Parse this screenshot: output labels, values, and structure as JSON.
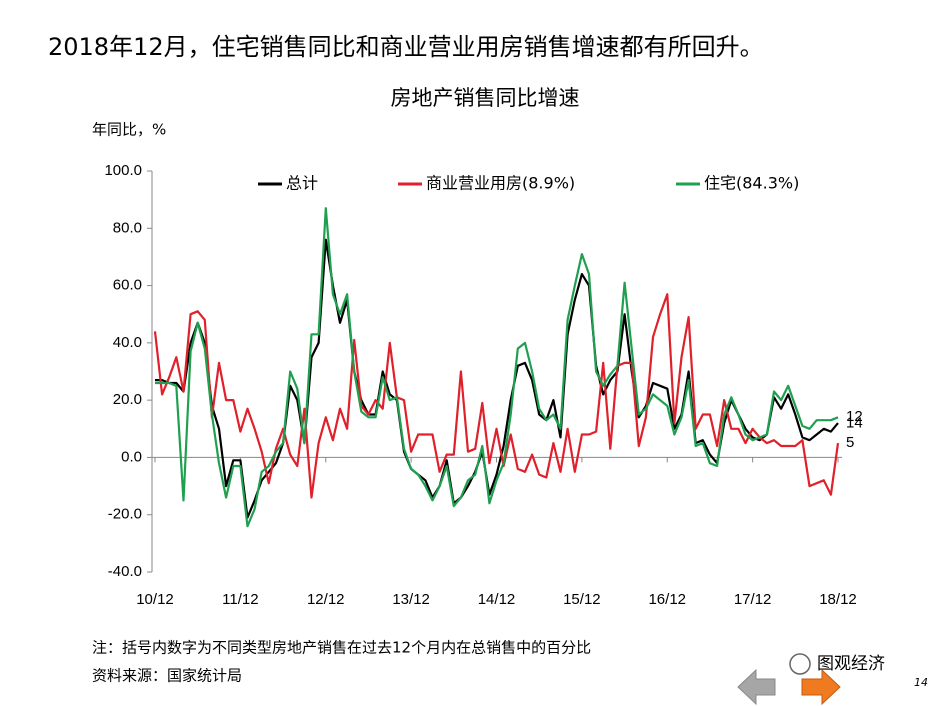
{
  "header": {
    "title": "2018年12月，住宅销售同比和商业营业用房销售增速都有所回升。"
  },
  "chart_data": {
    "type": "line",
    "title": "房地产销售同比增速",
    "y_label": "年同比，%",
    "categories": [
      "10/12",
      null,
      null,
      null,
      null,
      null,
      null,
      null,
      null,
      null,
      null,
      null,
      "11/12",
      null,
      null,
      null,
      null,
      null,
      null,
      null,
      null,
      null,
      null,
      null,
      "12/12",
      null,
      null,
      null,
      null,
      null,
      null,
      null,
      null,
      null,
      null,
      null,
      "13/12",
      null,
      null,
      null,
      null,
      null,
      null,
      null,
      null,
      null,
      null,
      null,
      "14/12",
      null,
      null,
      null,
      null,
      null,
      null,
      null,
      null,
      null,
      null,
      null,
      "15/12",
      null,
      null,
      null,
      null,
      null,
      null,
      null,
      null,
      null,
      null,
      null,
      "16/12",
      null,
      null,
      null,
      null,
      null,
      null,
      null,
      null,
      null,
      null,
      null,
      "17/12",
      null,
      null,
      null,
      null,
      null,
      null,
      null,
      null,
      null,
      null,
      null,
      "18/12"
    ],
    "series": [
      {
        "name": "总计",
        "color": "#000000",
        "values": [
          27,
          27,
          26,
          26,
          23,
          40,
          47,
          40,
          18,
          10,
          -10,
          -1,
          -1,
          -21,
          -15,
          -8,
          -5,
          -2,
          5,
          25,
          20,
          5,
          35,
          40,
          76,
          60,
          47,
          55,
          30,
          20,
          15,
          15,
          30,
          22,
          20,
          2,
          -4,
          -6,
          -8,
          -14,
          -10,
          -1,
          -16,
          -14,
          -10,
          -5,
          2,
          -13,
          -6,
          4,
          20,
          32,
          33,
          27,
          15,
          13,
          20,
          7,
          43,
          55,
          64,
          60,
          32,
          22,
          27,
          30,
          50,
          30,
          14,
          18,
          26,
          25,
          24,
          10,
          15,
          30,
          5,
          6,
          1,
          -2,
          12,
          20,
          15,
          10,
          7,
          6,
          8,
          21,
          17,
          22,
          15,
          7,
          6,
          8,
          10,
          9,
          12
        ]
      },
      {
        "name": "商业营业用房(8.9%)",
        "color": "#e0202a",
        "values": [
          44,
          22,
          28,
          35,
          23,
          50,
          51,
          48,
          14,
          33,
          20,
          20,
          9,
          17,
          10,
          2,
          -9,
          3,
          10,
          1,
          -3,
          17,
          -14,
          5,
          14,
          6,
          17,
          10,
          41,
          18,
          15,
          20,
          17,
          40,
          21,
          20,
          2,
          8,
          8,
          8,
          -5,
          1,
          1,
          30,
          2,
          3,
          19,
          -2,
          10,
          -3,
          8,
          -4,
          -5,
          1,
          -6,
          -7,
          5,
          -5,
          10,
          -5,
          8,
          8,
          9,
          33,
          3,
          32,
          33,
          33,
          4,
          14,
          42,
          50,
          57,
          12,
          35,
          49,
          10,
          15,
          15,
          4,
          20,
          10,
          10,
          5,
          10,
          7,
          5,
          6,
          4,
          4,
          4,
          6,
          -10,
          -9,
          -8,
          -13,
          5
        ]
      },
      {
        "name": "住宅(84.3%)",
        "color": "#1fa050",
        "values": [
          26,
          26,
          26,
          25,
          -15,
          37,
          47,
          38,
          15,
          -2,
          -14,
          -3,
          -3,
          -24,
          -18,
          -5,
          -3,
          2,
          5,
          30,
          24,
          5,
          43,
          43,
          87,
          57,
          50,
          57,
          30,
          16,
          14,
          14,
          28,
          20,
          21,
          3,
          -4,
          -6,
          -10,
          -15,
          -10,
          -3,
          -17,
          -14,
          -8,
          -6,
          4,
          -16,
          -8,
          -2,
          15,
          38,
          40,
          30,
          17,
          13,
          15,
          10,
          48,
          60,
          71,
          64,
          30,
          25,
          29,
          32,
          61,
          38,
          15,
          17,
          22,
          20,
          18,
          8,
          14,
          27,
          4,
          5,
          -2,
          -3,
          15,
          21,
          15,
          8,
          6,
          7,
          8,
          23,
          20,
          25,
          18,
          11,
          10,
          13,
          13,
          13,
          14
        ]
      }
    ],
    "ylim": [
      -40,
      100
    ],
    "yticks": [
      {
        "value": -40,
        "label": "-40.0"
      },
      {
        "value": -20,
        "label": "-20.0"
      },
      {
        "value": 0,
        "label": "0.0"
      },
      {
        "value": 20,
        "label": "20.0"
      },
      {
        "value": 40,
        "label": "40.0"
      },
      {
        "value": 60,
        "label": "60.0"
      },
      {
        "value": 80,
        "label": "80.0"
      },
      {
        "value": 100,
        "label": "100.0"
      }
    ],
    "grid": false,
    "legend": "top"
  },
  "footer": {
    "note": "注：括号内数字为不同类型房地产销售在过去12个月内在总销售中的百分比",
    "source": "资料来源：国家统计局",
    "watermark": "图观经济",
    "page": "14"
  }
}
